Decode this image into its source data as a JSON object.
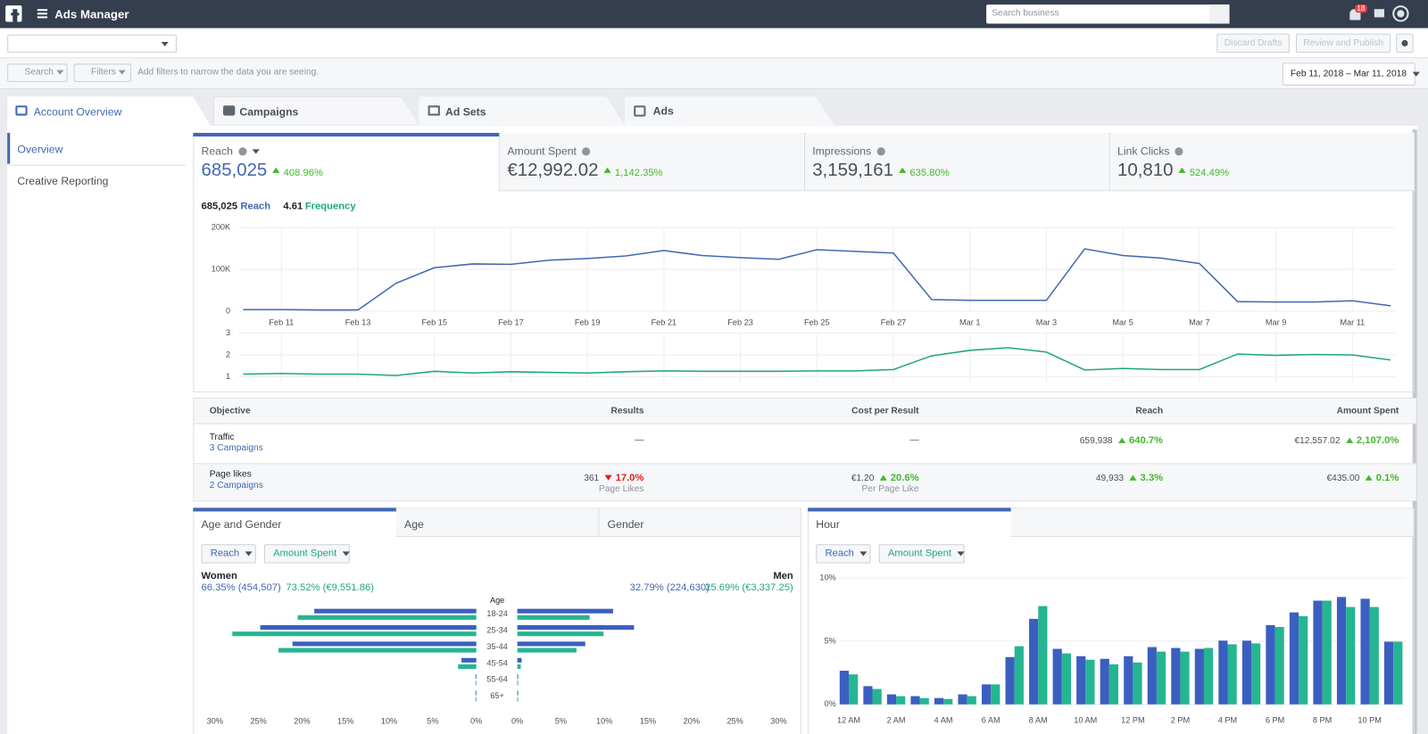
{
  "header": {
    "app_name": "Ads Manager",
    "search_placeholder": "Search business",
    "notifications": "18"
  },
  "toolbar": {
    "discard": "Discard Drafts",
    "publish": "Review and Publish"
  },
  "filter_bar": {
    "search": "Search",
    "filters": "Filters",
    "hint": "Add filters to narrow the data you are seeing.",
    "date_range": "Feb 11, 2018 – Mar 11, 2018"
  },
  "tabs": [
    "Account Overview",
    "Campaigns",
    "Ad Sets",
    "Ads"
  ],
  "sidebar": [
    "Overview",
    "Creative Reporting"
  ],
  "metrics": [
    {
      "label": "Reach",
      "value": "685,025",
      "change": "408.96%"
    },
    {
      "label": "Amount Spent",
      "value": "€12,992.02",
      "change": "1,142.35%"
    },
    {
      "label": "Impressions",
      "value": "3,159,161",
      "change": "635.80%"
    },
    {
      "label": "Link Clicks",
      "value": "10,810",
      "change": "524.49%"
    }
  ],
  "table": {
    "headers": [
      "Objective",
      "Results",
      "Cost per Result",
      "Reach",
      "Amount Spent"
    ],
    "rows": [
      {
        "objective": "Traffic",
        "campaigns": "3 Campaigns",
        "results": "—",
        "cost": "—",
        "reach": "659,938",
        "reach_change": "640.7%",
        "spent": "€12,557.02",
        "spent_change": "2,107.0%"
      },
      {
        "objective": "Page likes",
        "campaigns": "2 Campaigns",
        "results": "361",
        "results_change": "17.0%",
        "results_unit": "Page Likes",
        "cost": "€1.20",
        "cost_change": "20.6%",
        "cost_unit": "Per Page Like",
        "reach": "49,933",
        "reach_change": "3.3%",
        "spent": "€435.00",
        "spent_change": "0.1%"
      }
    ]
  },
  "chart_data": [
    {
      "type": "line",
      "categories": [
        null,
        "Feb 11",
        null,
        "Feb 13",
        null,
        "Feb 15",
        null,
        "Feb 17",
        null,
        "Feb 19",
        null,
        "Feb 21",
        null,
        "Feb 23",
        null,
        "Feb 25",
        null,
        "Feb 27",
        null,
        "Mar 1",
        null,
        "Mar 3",
        null,
        "Mar 5",
        null,
        "Mar 7",
        null,
        "Mar 9",
        null,
        "Mar 11",
        null
      ],
      "series": [
        {
          "name": "Reach",
          "total": "685,025",
          "color": "#4267b2",
          "values": [
            4000,
            4000,
            3000,
            3000,
            67000,
            104000,
            113000,
            112000,
            122000,
            126000,
            132000,
            145000,
            133000,
            128000,
            124000,
            147000,
            143000,
            139000,
            28000,
            26000,
            26000,
            26000,
            149000,
            133000,
            127000,
            114000,
            23000,
            22000,
            22000,
            25000,
            13000
          ]
        }
      ],
      "ylim": [
        0,
        200000
      ],
      "yticks": [
        0,
        {
          "value": 100000,
          "label": "100K"
        },
        {
          "value": 200000,
          "label": "200K"
        }
      ],
      "grid": true
    },
    {
      "type": "line",
      "series": [
        {
          "name": "Frequency",
          "total": "4.61",
          "color": "#20a67f",
          "values": [
            1.12,
            1.15,
            1.12,
            1.12,
            1.06,
            1.25,
            1.17,
            1.23,
            1.2,
            1.17,
            1.23,
            1.27,
            1.25,
            1.25,
            1.25,
            1.27,
            1.27,
            1.33,
            1.96,
            2.21,
            2.33,
            2.13,
            1.31,
            1.38,
            1.33,
            1.33,
            2.04,
            1.98,
            2.02,
            2,
            1.77
          ]
        }
      ],
      "ylim": [
        0.75,
        3
      ],
      "yticks": [
        1,
        2,
        3
      ],
      "grid": true
    },
    {
      "type": "bar",
      "orientation": "horizontal",
      "tabs": [
        "Age and Gender",
        "Age",
        "Gender"
      ],
      "axis_title": "Age",
      "categories": [
        "18-24",
        "25-34",
        "35-44",
        "45-54",
        "55-64",
        "65+"
      ],
      "series": [
        {
          "name": "Reach",
          "color": "#3b5fc0"
        },
        {
          "name": "Amount Spent",
          "color": "#26b591"
        }
      ],
      "groups": [
        {
          "name": "Women",
          "reach_label": "66.35% (454,507)",
          "spent_label": "73.52% (€9,551.86)",
          "series": [
            {
              "values": [
                18.6,
                24.8,
                21.1,
                1.7,
                0.1,
                0.1
              ]
            },
            {
              "values": [
                20.5,
                28,
                22.7,
                2.1,
                0.1,
                0.1
              ]
            }
          ]
        },
        {
          "name": "Men",
          "reach_label": "32.79% (224,630)",
          "spent_label": "25.69% (€3,337.25)",
          "series": [
            {
              "values": [
                11,
                13.4,
                7.8,
                0.5,
                0.1,
                0.1
              ]
            },
            {
              "values": [
                8.3,
                9.9,
                6.8,
                0.4,
                0.1,
                0.1
              ]
            }
          ]
        }
      ],
      "xlim": [
        0,
        30
      ],
      "xticks": [
        {
          "value": 0,
          "label": "0%"
        },
        {
          "value": 5,
          "label": "5%"
        },
        {
          "value": 10,
          "label": "10%"
        },
        {
          "value": 15,
          "label": "15%"
        },
        {
          "value": 20,
          "label": "20%"
        },
        {
          "value": 25,
          "label": "25%"
        },
        {
          "value": 30,
          "label": "30%"
        }
      ]
    },
    {
      "type": "bar",
      "orientation": "vertical",
      "tabs": [
        "Hour"
      ],
      "categories": [
        "12 AM",
        null,
        "2 AM",
        null,
        "4 AM",
        null,
        "6 AM",
        null,
        "8 AM",
        null,
        "10 AM",
        null,
        "12 PM",
        null,
        "2 PM",
        null,
        "4 PM",
        null,
        "6 PM",
        null,
        "8 PM",
        null,
        "10 PM",
        null
      ],
      "series": [
        {
          "name": "Reach",
          "color": "#3b5fc0",
          "values": [
            2.66,
            1.44,
            0.79,
            0.65,
            0.5,
            0.79,
            1.58,
            3.74,
            6.76,
            4.39,
            3.81,
            3.6,
            3.81,
            4.53,
            4.46,
            4.39,
            5.04,
            5.04,
            6.26,
            7.27,
            8.2,
            8.49,
            8.35,
            4.96
          ]
        },
        {
          "name": "Amount Spent",
          "color": "#26b591",
          "values": [
            2.37,
            1.22,
            0.65,
            0.5,
            0.43,
            0.65,
            1.58,
            4.6,
            7.77,
            4.03,
            3.53,
            3.17,
            3.31,
            4.17,
            4.17,
            4.46,
            4.75,
            4.82,
            6.12,
            6.98,
            8.2,
            7.7,
            7.7,
            4.96
          ]
        }
      ],
      "ylim": [
        0,
        10
      ],
      "yticks": [
        {
          "value": 0,
          "label": "0%"
        },
        {
          "value": 5,
          "label": "5%"
        },
        {
          "value": 10,
          "label": "10%"
        }
      ],
      "grid": true
    }
  ]
}
